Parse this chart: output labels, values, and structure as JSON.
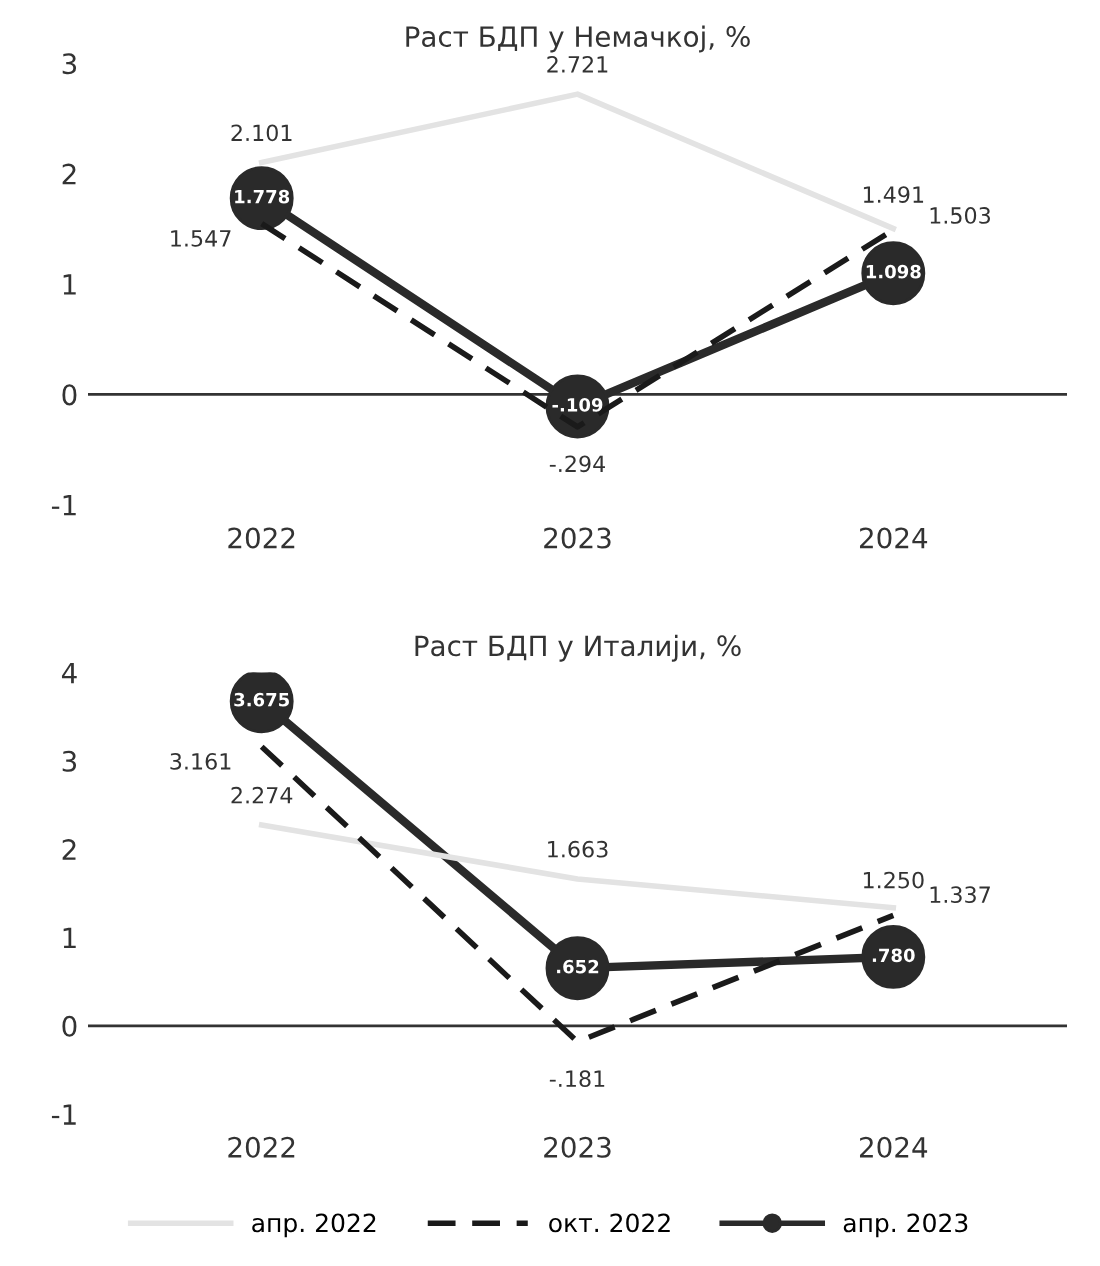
{
  "chart_data": [
    {
      "type": "line",
      "title": "Раст БДП у Немачкој, %",
      "categories": [
        "2022",
        "2023",
        "2024"
      ],
      "ylim": [
        -1,
        3
      ],
      "yticks": [
        -1,
        0,
        1,
        2,
        3
      ],
      "grid": false,
      "ref_lines": [
        {
          "axis": "y",
          "value": 0,
          "color": "#333333"
        }
      ],
      "legend": "bottom",
      "series": [
        {
          "name": "апр. 2022",
          "color": "#e3e3e3",
          "values": [
            2.101,
            2.721,
            1.503
          ],
          "value_labels": [
            "2.101",
            "2.721",
            "1.503"
          ],
          "line_style": "solid",
          "marker": "none"
        },
        {
          "name": "окт. 2022",
          "color": "#1a1a1a",
          "values": [
            1.547,
            -0.294,
            1.491
          ],
          "value_labels": [
            "1.547",
            "-.294",
            "1.491"
          ],
          "line_style": "dashed",
          "marker": "none"
        },
        {
          "name": "апр. 2023",
          "color": "#2a2a2a",
          "values": [
            1.778,
            -0.109,
            1.098
          ],
          "value_labels": [
            "1.778",
            "-.109",
            "1.098"
          ],
          "line_style": "solid",
          "marker": "circle"
        }
      ]
    },
    {
      "type": "line",
      "title": "Раст БДП у Италији, %",
      "categories": [
        "2022",
        "2023",
        "2024"
      ],
      "ylim": [
        -1,
        4
      ],
      "yticks": [
        -1,
        0,
        1,
        2,
        3,
        4
      ],
      "grid": false,
      "ref_lines": [
        {
          "axis": "y",
          "value": 0,
          "color": "#333333"
        }
      ],
      "legend": "bottom",
      "series": [
        {
          "name": "апр. 2022",
          "color": "#e3e3e3",
          "values": [
            2.274,
            1.663,
            1.337
          ],
          "value_labels": [
            "2.274",
            "1.663",
            "1.337"
          ],
          "line_style": "solid",
          "marker": "none"
        },
        {
          "name": "окт. 2022",
          "color": "#1a1a1a",
          "values": [
            3.161,
            -0.181,
            1.25
          ],
          "value_labels": [
            "3.161",
            "-.181",
            "1.250"
          ],
          "line_style": "dashed",
          "marker": "none"
        },
        {
          "name": "апр. 2023",
          "color": "#2a2a2a",
          "values": [
            3.675,
            0.652,
            0.78
          ],
          "value_labels": [
            "3.675",
            ".652",
            ".780"
          ],
          "line_style": "solid",
          "marker": "circle"
        }
      ]
    }
  ]
}
